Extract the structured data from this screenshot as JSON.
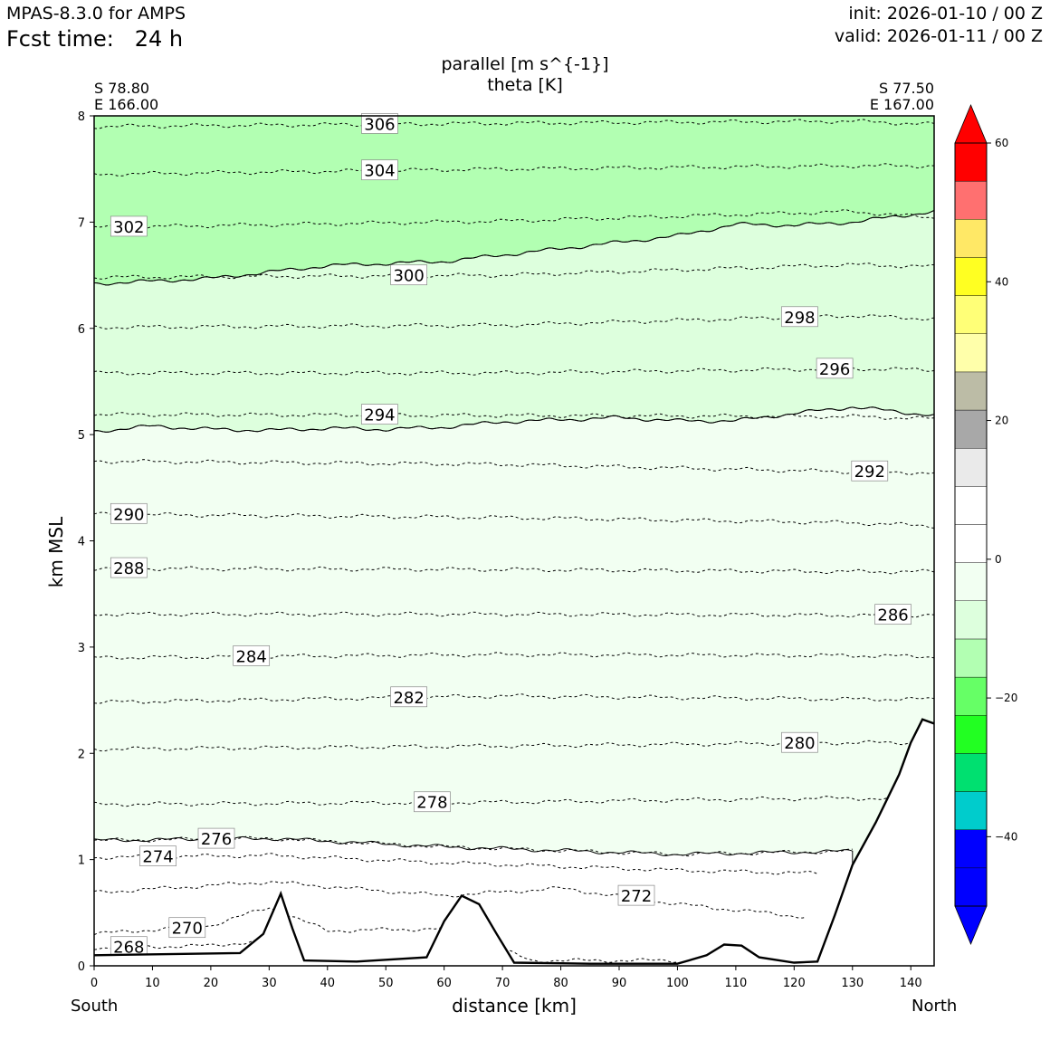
{
  "header": {
    "model": "MPAS-8.3.0 for AMPS",
    "fcst_label": "Fcst time:",
    "fcst_value": "24 h",
    "init": "init: 2026-01-10 / 00 Z",
    "valid": "valid: 2026-01-11 / 00 Z"
  },
  "endpoints": {
    "left_lat": "S 78.80",
    "left_lon": "E 166.00",
    "right_lat": "S 77.50",
    "right_lon": "E 167.00",
    "left_dir": "South",
    "right_dir": "North"
  },
  "chart_data": {
    "type": "contour-cross-section",
    "title": "parallel [m s^{-1}]",
    "subtitle": "theta [K]",
    "xlabel": "distance [km]",
    "ylabel": "km MSL",
    "xlim": [
      0,
      144
    ],
    "ylim": [
      0,
      8
    ],
    "xticks": [
      0,
      10,
      20,
      30,
      40,
      50,
      60,
      70,
      80,
      90,
      100,
      110,
      120,
      130,
      140
    ],
    "yticks": [
      0,
      1,
      2,
      3,
      4,
      5,
      6,
      7,
      8
    ],
    "shaded_field_boundaries_km": [
      {
        "level": "-15 to -20 (upper)",
        "x": [
          0,
          20,
          40,
          60,
          80,
          100,
          110,
          120,
          130,
          144
        ],
        "y": [
          6.42,
          6.47,
          6.59,
          6.63,
          6.75,
          6.87,
          6.98,
          6.97,
          7.0,
          7.1
        ]
      },
      {
        "level": "-10 to -15",
        "x": [
          0,
          10,
          20,
          30,
          40,
          50,
          60,
          70,
          80,
          90,
          100,
          110,
          120,
          130,
          144
        ],
        "y": [
          5.03,
          5.08,
          5.05,
          5.04,
          5.06,
          5.05,
          5.07,
          5.12,
          5.14,
          5.16,
          5.13,
          5.13,
          5.2,
          5.26,
          5.18
        ]
      }
    ],
    "theta_contours": [
      {
        "level": 306,
        "x": [
          0,
          70,
          130,
          144
        ],
        "y": [
          7.9,
          7.93,
          7.95,
          7.92
        ]
      },
      {
        "level": 304,
        "x": [
          0,
          70,
          130,
          144
        ],
        "y": [
          7.45,
          7.5,
          7.53,
          7.53
        ]
      },
      {
        "level": 302,
        "x": [
          0,
          70,
          130,
          144
        ],
        "y": [
          6.95,
          7.01,
          7.1,
          7.04
        ]
      },
      {
        "level": 300,
        "x": [
          0,
          70,
          130,
          144
        ],
        "y": [
          6.48,
          6.5,
          6.6,
          6.58
        ]
      },
      {
        "level": 298,
        "x": [
          0,
          70,
          130,
          144
        ],
        "y": [
          6.01,
          6.03,
          6.12,
          6.09
        ]
      },
      {
        "level": 296,
        "x": [
          0,
          70,
          130,
          144
        ],
        "y": [
          5.58,
          5.58,
          5.62,
          5.61
        ]
      },
      {
        "level": 294,
        "x": [
          0,
          70,
          130,
          144
        ],
        "y": [
          5.19,
          5.18,
          5.17,
          5.15
        ]
      },
      {
        "level": 292,
        "x": [
          0,
          70,
          130,
          144
        ],
        "y": [
          4.75,
          4.72,
          4.65,
          4.64
        ]
      },
      {
        "level": 290,
        "x": [
          0,
          70,
          130,
          144
        ],
        "y": [
          4.25,
          4.22,
          4.17,
          4.14
        ]
      },
      {
        "level": 288,
        "x": [
          0,
          70,
          130,
          144
        ],
        "y": [
          3.74,
          3.73,
          3.71,
          3.71
        ]
      },
      {
        "level": 286,
        "x": [
          0,
          70,
          130,
          144
        ],
        "y": [
          3.31,
          3.31,
          3.3,
          3.3
        ]
      },
      {
        "level": 284,
        "x": [
          0,
          70,
          130,
          144
        ],
        "y": [
          2.9,
          2.93,
          2.92,
          2.91
        ]
      },
      {
        "level": 282,
        "x": [
          0,
          70,
          130,
          144
        ],
        "y": [
          2.48,
          2.54,
          2.51,
          2.51
        ]
      },
      {
        "level": 280,
        "x": [
          0,
          70,
          130,
          144
        ],
        "y": [
          2.04,
          2.07,
          2.1,
          2.1
        ]
      },
      {
        "level": 278,
        "x": [
          0,
          70,
          130,
          144
        ],
        "y": [
          1.52,
          1.54,
          1.58,
          1.55
        ]
      },
      {
        "level": 276,
        "x": [
          0,
          30,
          60,
          100,
          130
        ],
        "y": [
          1.18,
          1.2,
          1.12,
          1.05,
          1.08
        ]
      },
      {
        "level": 274,
        "x": [
          0,
          30,
          60,
          100,
          124
        ],
        "y": [
          1.02,
          1.04,
          0.97,
          0.9,
          0.87
        ]
      },
      {
        "level": 272,
        "x": [
          0,
          30,
          60,
          80,
          100,
          122
        ],
        "y": [
          0.69,
          0.79,
          0.66,
          0.73,
          0.58,
          0.46
        ]
      },
      {
        "level": 270,
        "x": [
          0,
          20,
          30,
          40,
          60,
          75,
          100
        ],
        "y": [
          0.3,
          0.38,
          0.55,
          0.33,
          0.35,
          0.05,
          0.05
        ]
      },
      {
        "level": 268,
        "x": [
          0,
          20,
          30
        ],
        "y": [
          0.17,
          0.19,
          0.24
        ]
      }
    ],
    "terrain": {
      "x": [
        0,
        25,
        29,
        32,
        34,
        36,
        45,
        57,
        60,
        63,
        66,
        69,
        72,
        85,
        100,
        105,
        108,
        111,
        114,
        120,
        124,
        127,
        130,
        134,
        138,
        140,
        142,
        144
      ],
      "y": [
        0.1,
        0.12,
        0.3,
        0.68,
        0.35,
        0.05,
        0.04,
        0.08,
        0.42,
        0.66,
        0.58,
        0.3,
        0.03,
        0.02,
        0.02,
        0.1,
        0.2,
        0.19,
        0.08,
        0.03,
        0.04,
        0.48,
        0.95,
        1.35,
        1.8,
        2.1,
        2.32,
        2.28
      ]
    },
    "colorbar": {
      "ticks": [
        60,
        40,
        20,
        0,
        -20,
        -40
      ],
      "tick_labels": [
        "60",
        "40",
        "20",
        "0",
        "−20",
        "−40"
      ],
      "colors": [
        "#0000ff",
        "#0000ff",
        "#00cccc",
        "#00e070",
        "#22ff22",
        "#66ff66",
        "#b2ffb2",
        "#ddffdd",
        "#f2fff2",
        "#ffffff",
        "#ffffff",
        "#eaeaea",
        "#a8a8a8",
        "#bcbca6",
        "#ffffaa",
        "#ffff77",
        "#ffff22",
        "#ffe866",
        "#ff7070",
        "#ff0000"
      ],
      "extend_low": "#0000ff",
      "extend_high": "#ff0000"
    }
  }
}
